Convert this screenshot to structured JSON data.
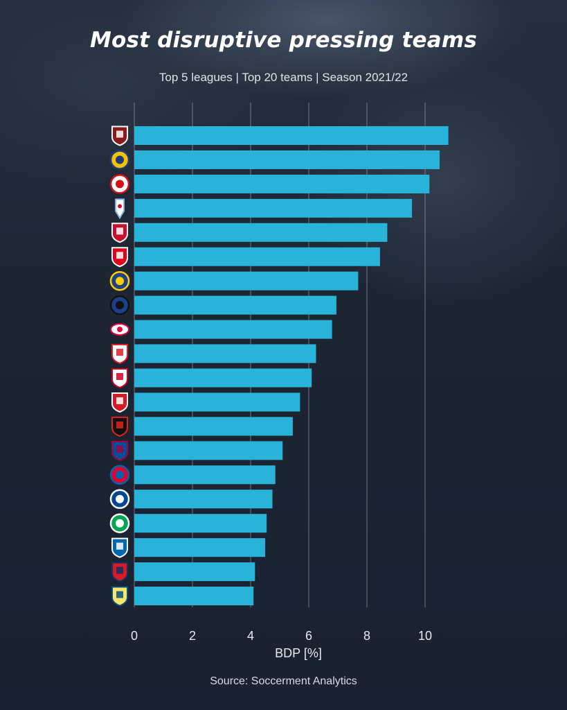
{
  "title": "Most disruptive pressing teams",
  "subtitle": "Top 5 leagues | Top 20 teams | Season 2021/22",
  "source": "Source: Soccerment Analytics",
  "colors": {
    "bar": "#29b3d9",
    "grid": "#8a93a0",
    "axis_text": "#e6ebf1"
  },
  "chart_data": {
    "type": "bar",
    "orientation": "horizontal",
    "xlabel": "BDP [%]",
    "ylabel": "",
    "xlim": [
      0,
      11
    ],
    "xticks": [
      "0",
      "2",
      "4",
      "6",
      "8",
      "10"
    ],
    "grid": "vertical",
    "teams": [
      {
        "logo": "torino-crest-icon",
        "value": 10.8
      },
      {
        "logo": "hellas-verona-crest-icon",
        "value": 10.5
      },
      {
        "logo": "koln-crest-icon",
        "value": 10.15
      },
      {
        "logo": "celta-vigo-crest-icon",
        "value": 9.55
      },
      {
        "logo": "liverpool-crest-icon",
        "value": 8.7
      },
      {
        "logo": "monaco-crest-icon",
        "value": 8.45
      },
      {
        "logo": "leeds-crest-icon",
        "value": 7.7
      },
      {
        "logo": "atalanta-crest-icon",
        "value": 6.95
      },
      {
        "logo": "rb-leipzig-crest-icon",
        "value": 6.8
      },
      {
        "logo": "rayo-vallecano-crest-icon",
        "value": 6.25
      },
      {
        "logo": "sevilla-crest-icon",
        "value": 6.1
      },
      {
        "logo": "southampton-crest-icon",
        "value": 5.7
      },
      {
        "logo": "rennes-crest-icon",
        "value": 5.45
      },
      {
        "logo": "barcelona-crest-icon",
        "value": 5.1
      },
      {
        "logo": "bayern-crest-icon",
        "value": 4.85
      },
      {
        "logo": "chelsea-crest-icon",
        "value": 4.75
      },
      {
        "logo": "saint-etienne-crest-icon",
        "value": 4.55
      },
      {
        "logo": "real-sociedad-crest-icon",
        "value": 4.5
      },
      {
        "logo": "osasuna-crest-icon",
        "value": 4.15
      },
      {
        "logo": "villarreal-crest-icon",
        "value": 4.1
      }
    ]
  }
}
